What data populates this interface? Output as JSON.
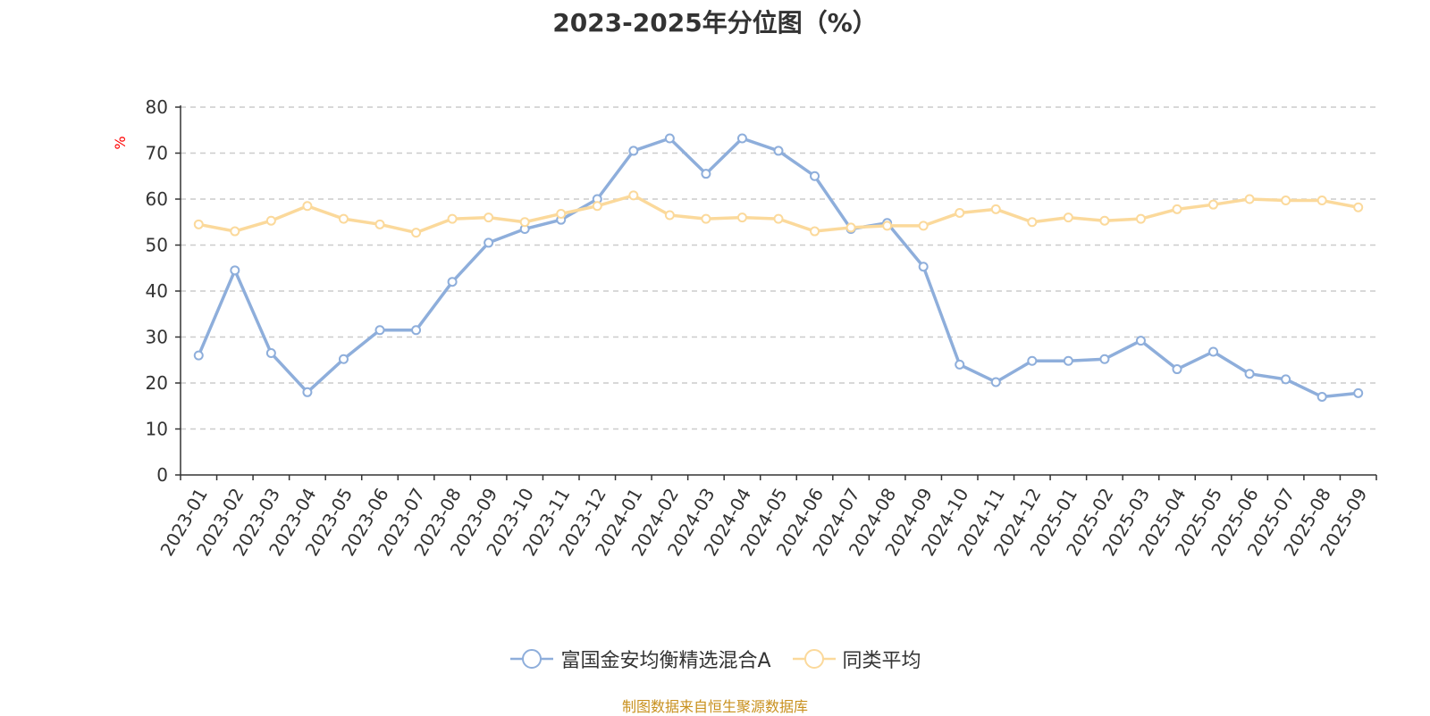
{
  "chart_data": {
    "type": "line",
    "title": "2023-2025年分位图（%）",
    "ylabel": "%",
    "xlabel": "",
    "ylim": [
      0,
      80
    ],
    "yticks": [
      "0",
      "10",
      "20",
      "30",
      "40",
      "50",
      "60",
      "70",
      "80"
    ],
    "categories": [
      "2023-01",
      "2023-02",
      "2023-03",
      "2023-04",
      "2023-05",
      "2023-06",
      "2023-07",
      "2023-08",
      "2023-09",
      "2023-10",
      "2023-11",
      "2023-12",
      "2024-01",
      "2024-02",
      "2024-03",
      "2024-04",
      "2024-05",
      "2024-06",
      "2024-07",
      "2024-08",
      "2024-09",
      "2024-10",
      "2024-11",
      "2024-12",
      "2025-01",
      "2025-02",
      "2025-03",
      "2025-04",
      "2025-05",
      "2025-06",
      "2025-07",
      "2025-08",
      "2025-09"
    ],
    "series": [
      {
        "name": "富国金安均衡精选混合A",
        "color": "#8eaedb",
        "values": [
          26.0,
          44.5,
          26.5,
          18.0,
          25.2,
          31.5,
          31.5,
          42.0,
          50.5,
          53.5,
          55.5,
          60.0,
          70.5,
          73.2,
          65.5,
          73.2,
          70.5,
          65.0,
          53.5,
          54.8,
          45.3,
          24.0,
          20.2,
          24.8,
          24.8,
          25.2,
          29.2,
          23.0,
          26.8,
          22.0,
          20.8,
          17.0,
          17.8
        ]
      },
      {
        "name": "同类平均",
        "color": "#fbd99b",
        "values": [
          54.5,
          53.0,
          55.3,
          58.5,
          55.7,
          54.5,
          52.7,
          55.7,
          56.0,
          55.0,
          56.8,
          58.5,
          60.8,
          56.5,
          55.7,
          56.0,
          55.7,
          53.0,
          53.8,
          54.2,
          54.2,
          57.0,
          57.8,
          55.0,
          56.0,
          55.3,
          55.7,
          57.8,
          58.8,
          60.0,
          59.7,
          59.7,
          58.2
        ]
      }
    ],
    "grid": true,
    "legend_position": "bottom",
    "source": "制图数据来自恒生聚源数据库",
    "colors": {
      "axis": "#333333",
      "grid": "#cccccc",
      "unit": "#ff0000",
      "source": "#c8901e"
    }
  }
}
